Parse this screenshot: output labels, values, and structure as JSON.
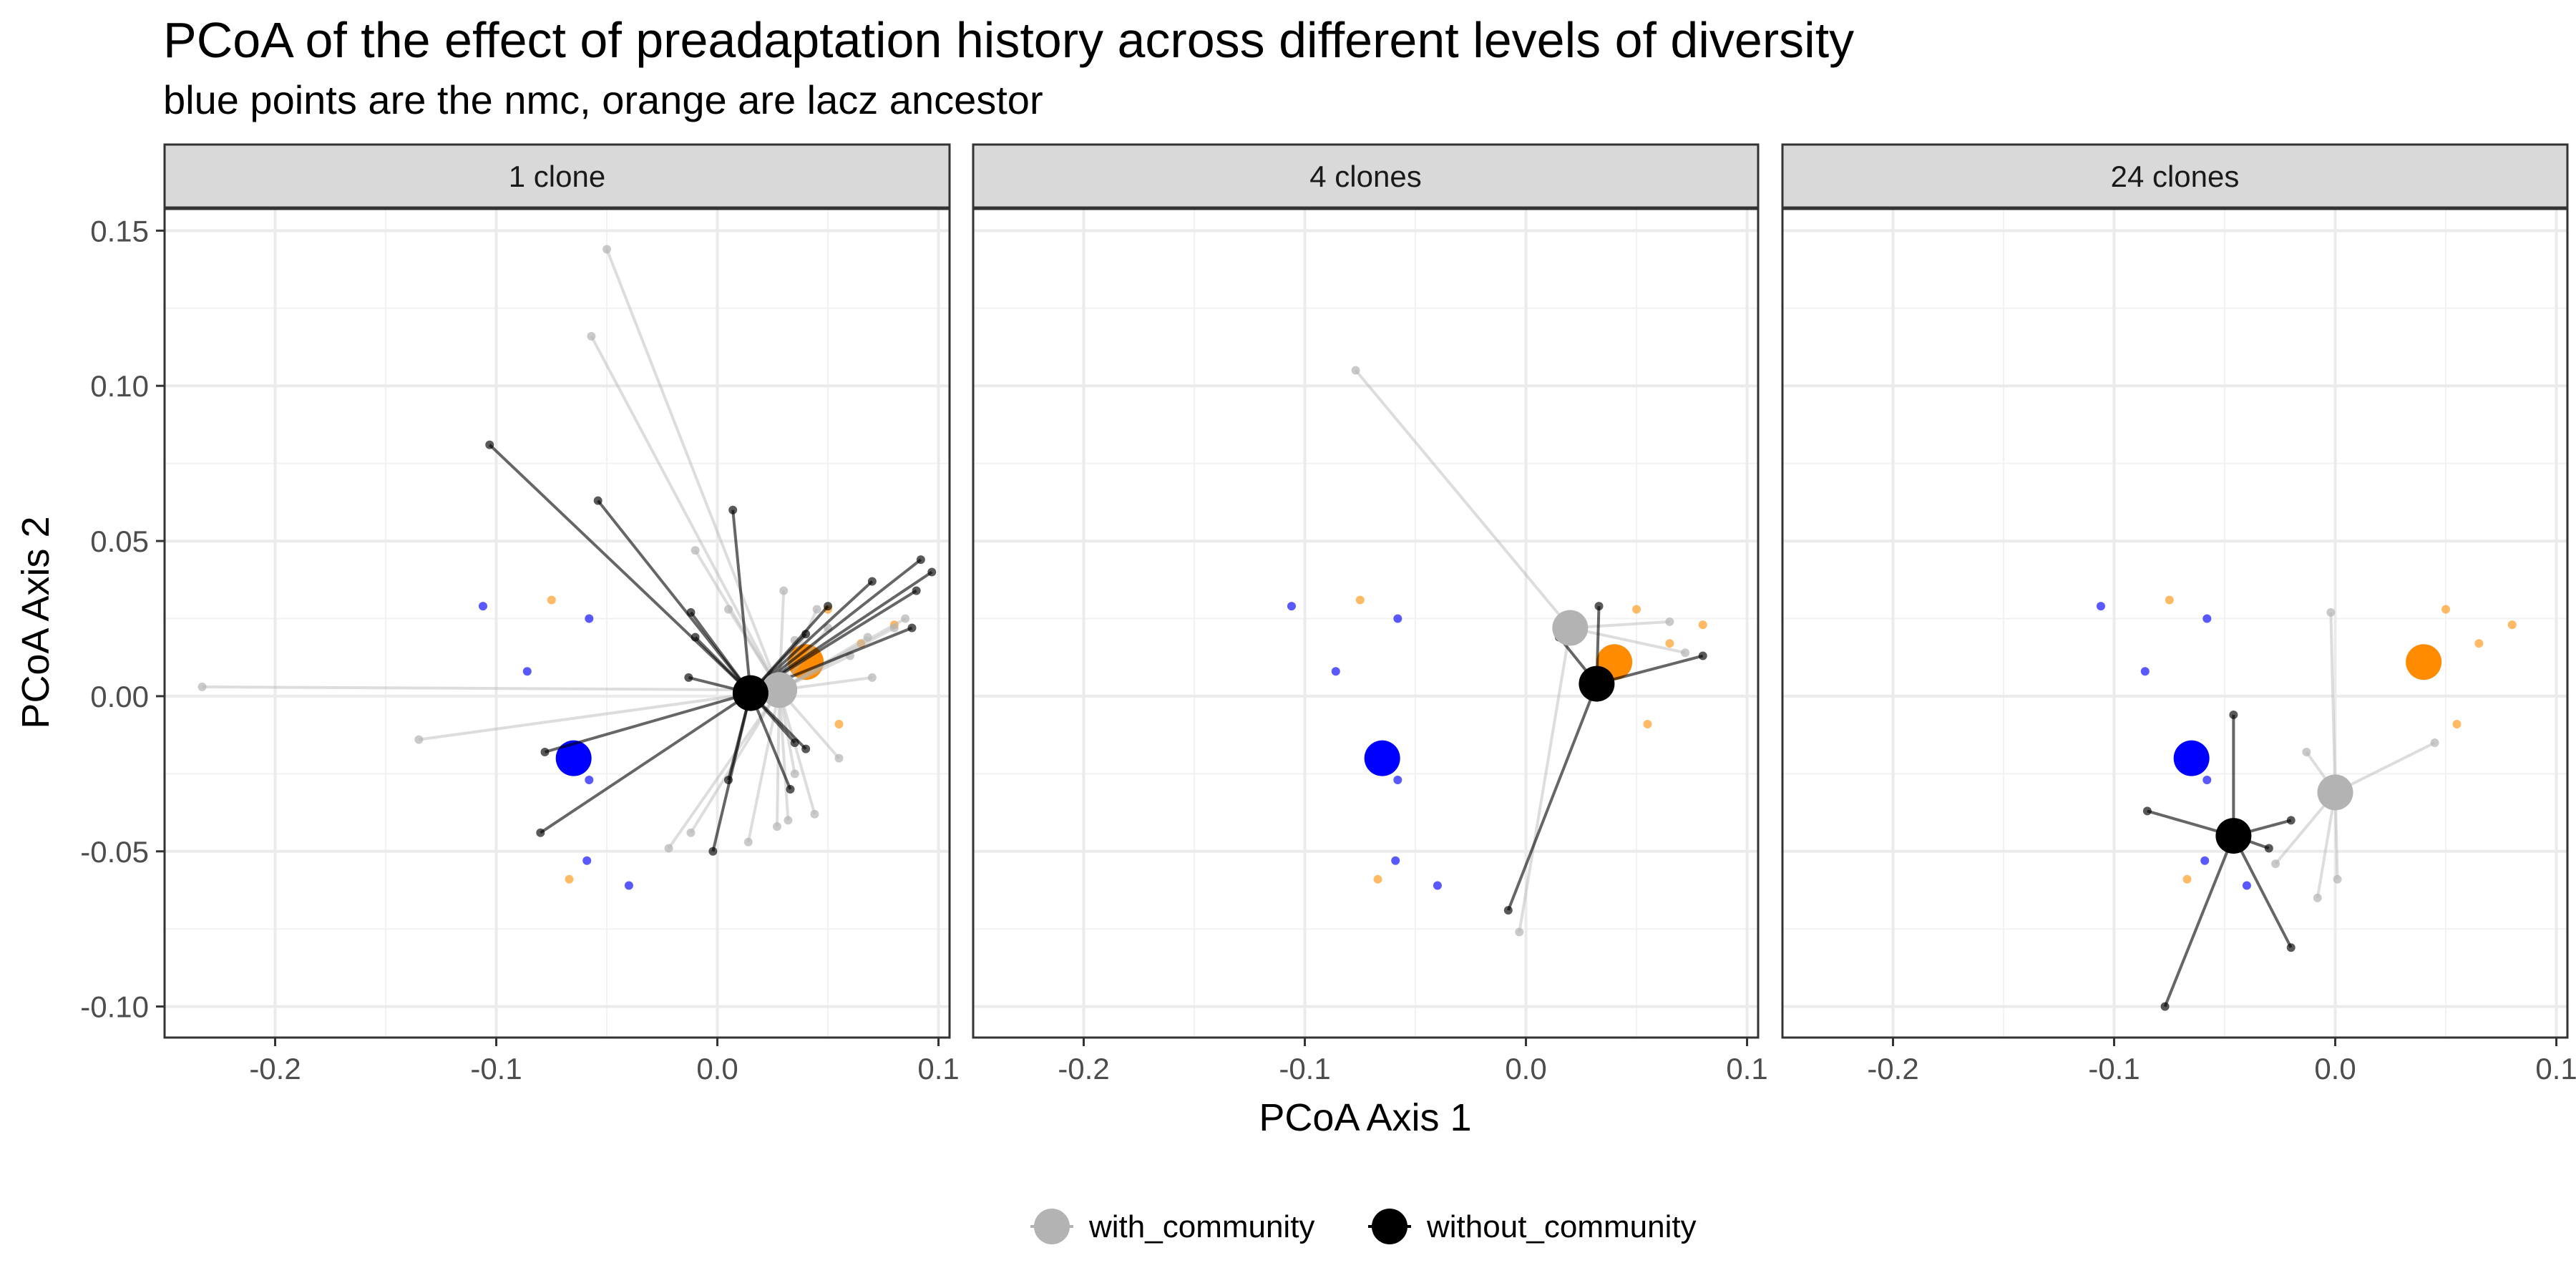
{
  "chart_data": {
    "type": "scatter",
    "title": "PCoA of the effect of preadaptation history across different levels of diversity",
    "subtitle": "blue points are the nmc, orange are lacz ancestor",
    "xlabel": "PCoA Axis 1",
    "ylabel": "PCoA Axis 2",
    "xlim": [
      -0.25,
      0.105
    ],
    "ylim": [
      -0.11,
      0.157
    ],
    "x_ticks": [
      -0.2,
      -0.1,
      0.0,
      0.1
    ],
    "x_tick_labels": [
      "-0.2",
      "-0.1",
      "0.0",
      "0.1"
    ],
    "y_ticks": [
      -0.1,
      -0.05,
      0.0,
      0.05,
      0.1,
      0.15
    ],
    "y_tick_labels": [
      "-0.10",
      "-0.05",
      "0.00",
      "0.05",
      "0.10",
      "0.15"
    ],
    "grid": true,
    "legend_position": "bottom",
    "legend": [
      {
        "label": "with_community",
        "color": "#b3b3b3"
      },
      {
        "label": "without_community",
        "color": "#000000"
      }
    ],
    "colors": {
      "nmc": "#0000ff",
      "lacz": "#ff8c00",
      "with_community": "#b3b3b3",
      "without_community": "#000000",
      "strip_fill": "#d9d9d9",
      "grid": "#ebebeb"
    },
    "reference_points": {
      "nmc": [
        [
          -0.106,
          0.029
        ],
        [
          -0.058,
          0.025
        ],
        [
          -0.086,
          0.008
        ],
        [
          -0.058,
          -0.027
        ],
        [
          -0.059,
          -0.053
        ],
        [
          -0.04,
          -0.061
        ]
      ],
      "lacz": [
        [
          -0.075,
          0.031
        ],
        [
          0.05,
          0.028
        ],
        [
          0.065,
          0.017
        ],
        [
          0.08,
          0.023
        ],
        [
          0.055,
          -0.009
        ],
        [
          -0.067,
          -0.059
        ]
      ],
      "nmc_centroid": [
        -0.065,
        -0.02
      ],
      "lacz_centroid": [
        0.04,
        0.011
      ]
    },
    "panels": [
      {
        "label": "1 clone",
        "with_community": {
          "centroid": [
            0.028,
            0.002
          ],
          "points": [
            [
              -0.05,
              0.144
            ],
            [
              -0.057,
              0.116
            ],
            [
              -0.233,
              0.003
            ],
            [
              -0.135,
              -0.014
            ],
            [
              -0.01,
              0.047
            ],
            [
              0.005,
              0.028
            ],
            [
              0.03,
              0.034
            ],
            [
              0.045,
              0.028
            ],
            [
              0.05,
              0.022
            ],
            [
              0.07,
              0.006
            ],
            [
              0.08,
              0.022
            ],
            [
              0.068,
              0.019
            ],
            [
              0.035,
              0.018
            ],
            [
              0.055,
              -0.02
            ],
            [
              0.035,
              -0.025
            ],
            [
              0.032,
              -0.04
            ],
            [
              0.027,
              -0.042
            ],
            [
              0.014,
              -0.047
            ],
            [
              -0.022,
              -0.049
            ],
            [
              -0.012,
              -0.044
            ],
            [
              0.044,
              -0.038
            ],
            [
              0.085,
              0.025
            ],
            [
              0.06,
              0.013
            ]
          ]
        },
        "without_community": {
          "centroid": [
            0.015,
            0.001
          ],
          "points": [
            [
              -0.103,
              0.081
            ],
            [
              -0.054,
              0.063
            ],
            [
              0.007,
              0.06
            ],
            [
              -0.012,
              0.027
            ],
            [
              -0.01,
              0.019
            ],
            [
              -0.013,
              0.006
            ],
            [
              0.04,
              0.02
            ],
            [
              0.05,
              0.029
            ],
            [
              0.07,
              0.037
            ],
            [
              0.09,
              0.034
            ],
            [
              0.092,
              0.044
            ],
            [
              0.097,
              0.04
            ],
            [
              0.088,
              0.022
            ],
            [
              0.035,
              -0.015
            ],
            [
              0.033,
              -0.03
            ],
            [
              -0.078,
              -0.018
            ],
            [
              -0.08,
              -0.044
            ],
            [
              0.005,
              -0.027
            ],
            [
              -0.002,
              -0.05
            ],
            [
              0.04,
              -0.017
            ]
          ]
        }
      },
      {
        "label": "4 clones",
        "with_community": {
          "centroid": [
            0.02,
            0.022
          ],
          "points": [
            [
              -0.077,
              0.105
            ],
            [
              0.065,
              0.024
            ],
            [
              0.072,
              0.014
            ],
            [
              -0.003,
              -0.076
            ]
          ]
        },
        "without_community": {
          "centroid": [
            0.032,
            0.004
          ],
          "points": [
            [
              0.033,
              0.029
            ],
            [
              0.08,
              0.013
            ],
            [
              -0.008,
              -0.069
            ],
            [
              0.015,
              0.019
            ]
          ]
        }
      },
      {
        "label": "24 clones",
        "with_community": {
          "centroid": [
            0.0,
            -0.031
          ],
          "points": [
            [
              -0.002,
              0.027
            ],
            [
              -0.013,
              -0.018
            ],
            [
              -0.027,
              -0.054
            ],
            [
              -0.008,
              -0.065
            ],
            [
              0.045,
              -0.015
            ],
            [
              0.001,
              -0.059
            ]
          ]
        },
        "without_community": {
          "centroid": [
            -0.046,
            -0.045
          ],
          "points": [
            [
              -0.046,
              -0.006
            ],
            [
              -0.085,
              -0.037
            ],
            [
              -0.077,
              -0.1
            ],
            [
              -0.02,
              -0.04
            ],
            [
              -0.03,
              -0.049
            ],
            [
              -0.02,
              -0.081
            ]
          ]
        }
      }
    ]
  }
}
